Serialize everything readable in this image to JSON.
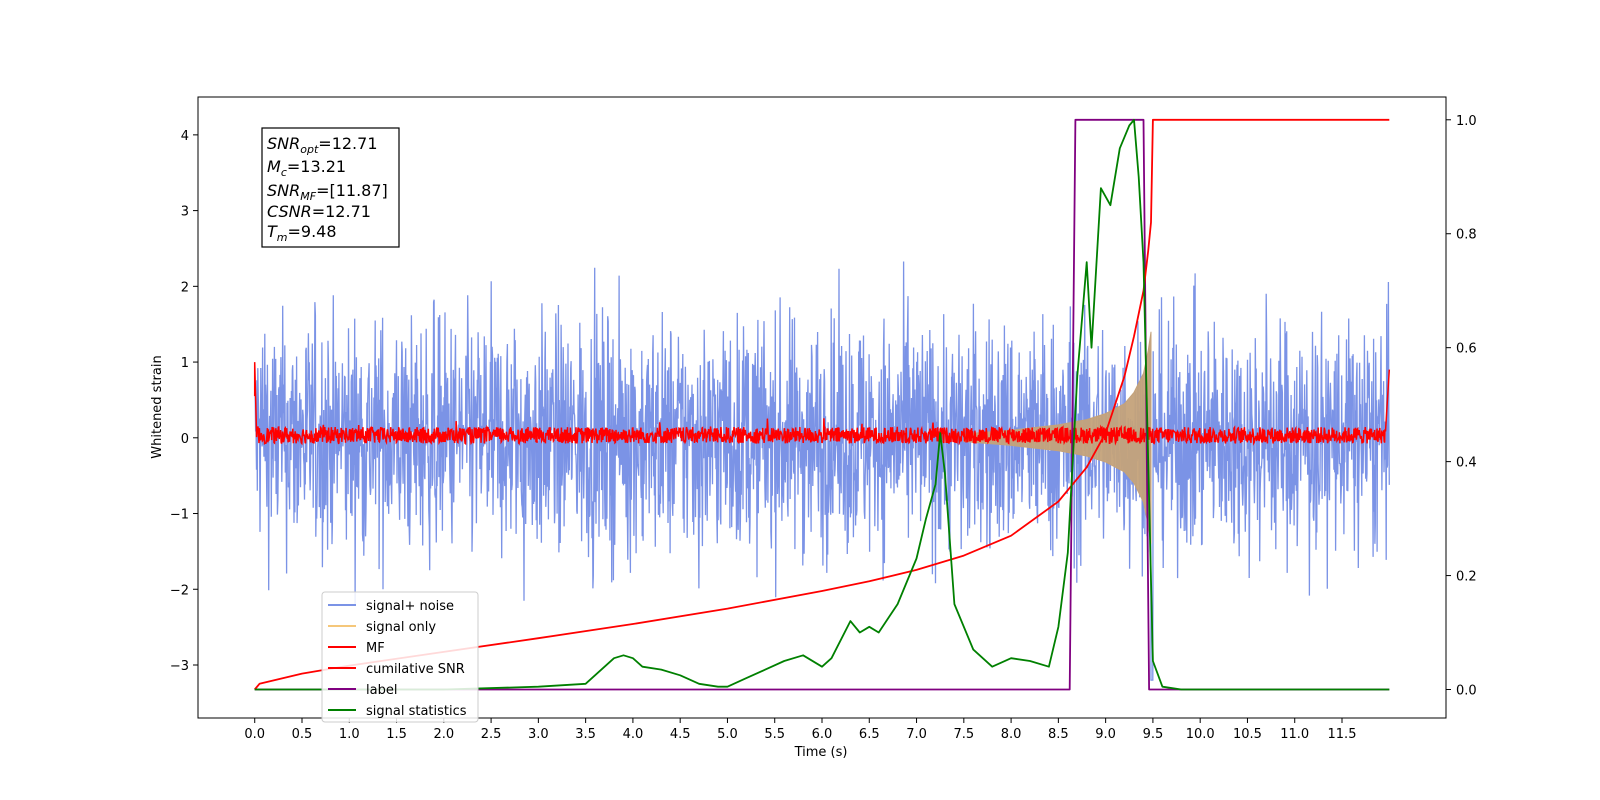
{
  "chart_data": {
    "type": "line",
    "xlabel": "Time (s)",
    "ylabel_left": "Whitened strain",
    "ylabel_right": "",
    "x_range": [
      -0.6,
      12.6
    ],
    "ylim_left": [
      -3.7,
      4.5
    ],
    "ylim_right": [
      -0.05,
      1.04
    ],
    "x_ticks": [
      "0.0",
      "0.5",
      "1.0",
      "1.5",
      "2.0",
      "2.5",
      "3.0",
      "3.5",
      "4.0",
      "4.5",
      "5.0",
      "5.5",
      "6.0",
      "6.5",
      "7.0",
      "7.5",
      "8.0",
      "8.5",
      "9.0",
      "9.5",
      "10.0",
      "10.5",
      "11.0",
      "11.5"
    ],
    "y_ticks_left": [
      "−3",
      "−2",
      "−1",
      "0",
      "1",
      "2",
      "3",
      "4"
    ],
    "y_ticks_right": [
      "0.0",
      "0.2",
      "0.4",
      "0.6",
      "0.8",
      "1.0"
    ],
    "annotation": {
      "snr_opt": {
        "main": "SNR",
        "sub": "opt",
        "value": "=12.71"
      },
      "mc": {
        "main": "M",
        "sub": "c",
        "value": "=13.21"
      },
      "snr_mf": {
        "main": "SNR",
        "sub": "MF",
        "value": "=[11.87]"
      },
      "csnr": {
        "main": "CSNR",
        "value": "=12.71"
      },
      "tm": {
        "main": "T",
        "sub": "m",
        "value": "=9.48"
      }
    },
    "legend": {
      "position": "lower-left",
      "items": [
        "signal+ noise",
        "signal only",
        "MF",
        "cumilative SNR",
        "label",
        "signal statistics"
      ]
    },
    "colors": {
      "noise": "#7b93e6",
      "signal": "#c4a27a",
      "signal_legend": "#f5c77a",
      "mf": "#ff0000",
      "csnr": "#ff0000",
      "label": "#800080",
      "stats": "#008000"
    },
    "series": [
      {
        "name": "signal+ noise",
        "axis": "left",
        "note": "whitened noise, spread about ±2.5 over 0–12 s",
        "band": {
          "x_start": 0.0,
          "x_end": 12.0,
          "lo": -2.4,
          "hi": 2.5
        }
      },
      {
        "name": "signal only",
        "axis": "left",
        "envelope": {
          "x": [
            7.5,
            8.0,
            8.5,
            8.8,
            9.0,
            9.2,
            9.3,
            9.4,
            9.45,
            9.48
          ],
          "amp": [
            0.05,
            0.1,
            0.17,
            0.24,
            0.32,
            0.45,
            0.6,
            0.85,
            1.15,
            1.4
          ]
        }
      },
      {
        "name": "MF",
        "axis": "left",
        "note": "matched-filter output near 0, edge spikes to ~1.0 and ~0.9",
        "band": {
          "x_start": 0.0,
          "x_end": 12.0,
          "lo": -0.1,
          "hi": 0.18
        }
      },
      {
        "name": "cumilative SNR",
        "axis": "right",
        "x": [
          0.0,
          0.05,
          0.5,
          1.0,
          2.0,
          3.0,
          4.0,
          5.0,
          6.0,
          6.5,
          7.0,
          7.5,
          8.0,
          8.5,
          8.8,
          9.0,
          9.2,
          9.3,
          9.4,
          9.45,
          9.48,
          9.5,
          12.0
        ],
        "y": [
          0.0,
          0.01,
          0.028,
          0.042,
          0.066,
          0.09,
          0.115,
          0.142,
          0.173,
          0.19,
          0.21,
          0.235,
          0.27,
          0.33,
          0.39,
          0.45,
          0.55,
          0.62,
          0.7,
          0.77,
          0.82,
          1.0,
          1.0
        ]
      },
      {
        "name": "label",
        "axis": "right",
        "x": [
          0.0,
          8.62,
          8.68,
          9.4,
          9.46,
          12.0
        ],
        "y": [
          0.0,
          0.0,
          1.0,
          1.0,
          0.0,
          0.0
        ]
      },
      {
        "name": "signal statistics",
        "axis": "right",
        "x": [
          0.0,
          1.0,
          2.0,
          3.0,
          3.5,
          3.8,
          3.9,
          4.0,
          4.1,
          4.3,
          4.5,
          4.7,
          4.9,
          5.0,
          5.2,
          5.4,
          5.6,
          5.8,
          6.0,
          6.1,
          6.3,
          6.4,
          6.5,
          6.6,
          6.8,
          7.0,
          7.1,
          7.2,
          7.25,
          7.3,
          7.4,
          7.6,
          7.8,
          8.0,
          8.2,
          8.4,
          8.5,
          8.6,
          8.7,
          8.8,
          8.85,
          8.95,
          9.05,
          9.15,
          9.25,
          9.3,
          9.35,
          9.4,
          9.45,
          9.5,
          9.6,
          9.8,
          10.0,
          11.0,
          12.0
        ],
        "y": [
          0.0,
          0.0,
          0.0,
          0.005,
          0.01,
          0.055,
          0.06,
          0.055,
          0.04,
          0.035,
          0.025,
          0.01,
          0.005,
          0.005,
          0.02,
          0.035,
          0.05,
          0.06,
          0.04,
          0.055,
          0.12,
          0.1,
          0.11,
          0.1,
          0.15,
          0.23,
          0.3,
          0.36,
          0.45,
          0.38,
          0.15,
          0.07,
          0.04,
          0.055,
          0.05,
          0.04,
          0.11,
          0.24,
          0.55,
          0.75,
          0.6,
          0.88,
          0.85,
          0.95,
          0.99,
          1.0,
          0.9,
          0.75,
          0.4,
          0.05,
          0.005,
          0.0,
          0.0,
          0.0,
          0.0
        ]
      }
    ]
  }
}
